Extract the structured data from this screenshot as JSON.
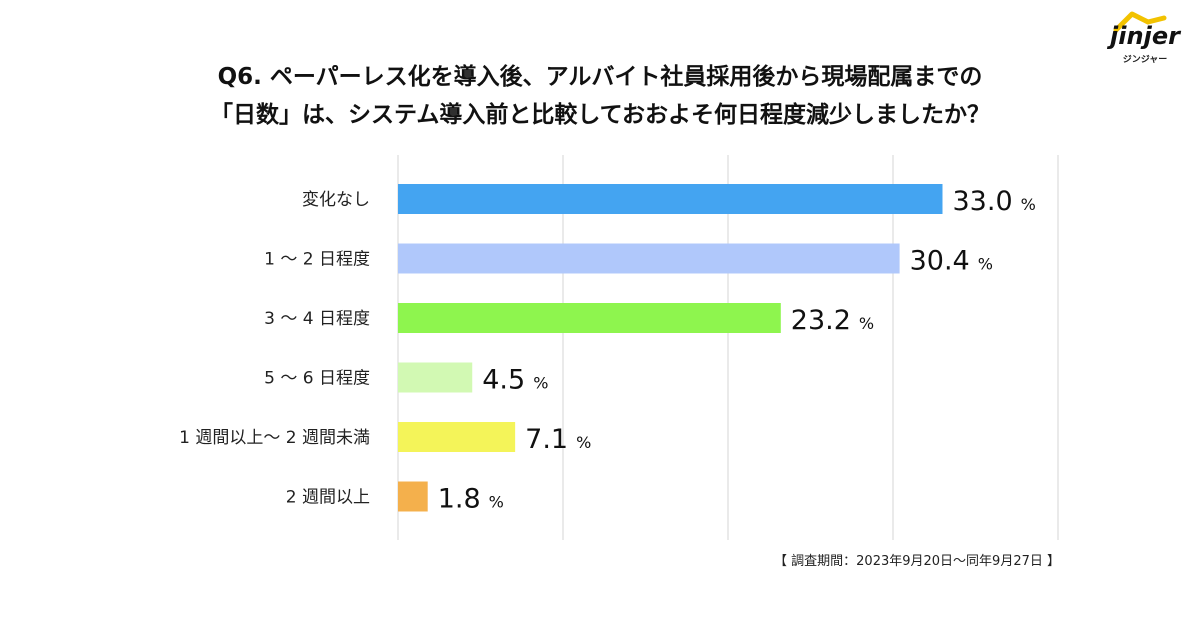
{
  "title": {
    "line1": "Q6. ペーパーレス化を導入後、アルバイト社員採用後から現場配属までの",
    "line2": "「日数」は、システム導入前と比較しておおよそ何日程度減少しましたか？"
  },
  "logo": {
    "word": "jinjer",
    "sub": "ジンジャー",
    "accent_color": "#f2c200"
  },
  "footnote": "【 調査期間：2023年9月20日〜同年9月27日 】",
  "chart_data": {
    "type": "bar",
    "orientation": "horizontal",
    "categories": [
      "変化なし",
      "1 〜 2 日程度",
      "3 〜 4 日程度",
      "5 〜 6 日程度",
      "1 週間以上〜 2 週間未満",
      "2 週間以上"
    ],
    "values": [
      33.0,
      30.4,
      23.2,
      4.5,
      7.1,
      1.8
    ],
    "value_labels": [
      "33.0",
      "30.4",
      "23.2",
      "4.5",
      "7.1",
      "1.8"
    ],
    "unit": "%",
    "colors": [
      "#44a4f1",
      "#b0c8fb",
      "#8ef54e",
      "#d2f9b3",
      "#f4f459",
      "#f4b04c"
    ],
    "xlim": [
      0,
      40
    ],
    "gridlines": [
      0,
      10,
      20,
      30,
      40
    ],
    "grid": true,
    "legend": "none"
  }
}
